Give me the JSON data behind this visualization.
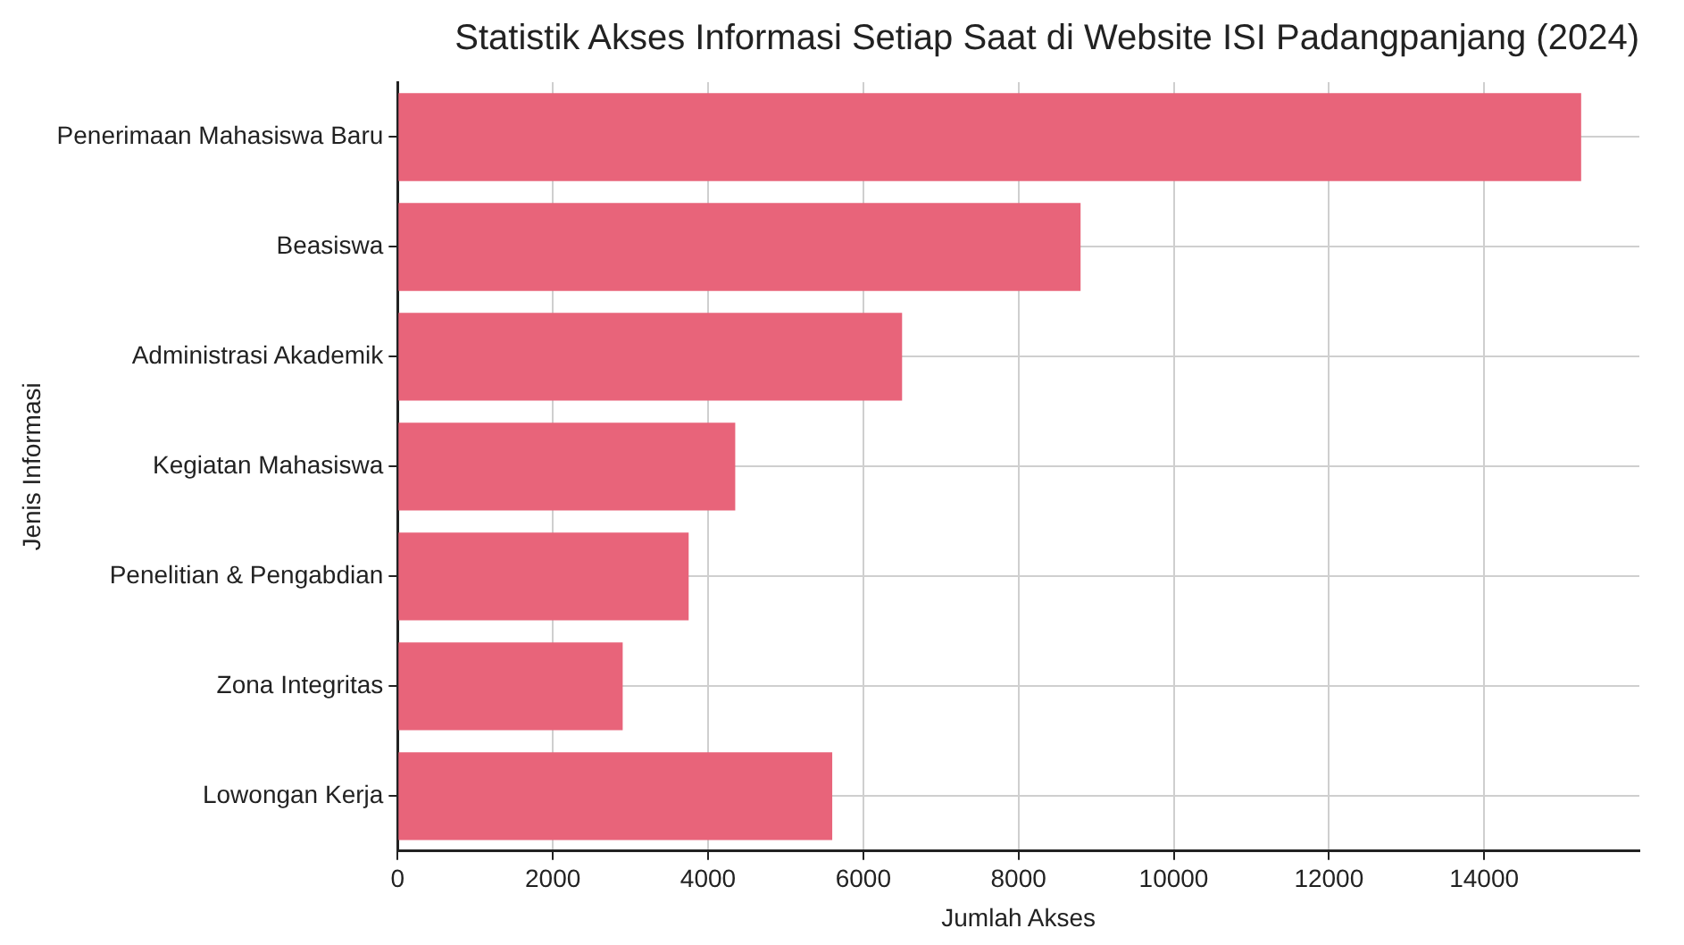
{
  "chart_data": {
    "type": "bar",
    "orientation": "horizontal",
    "title": "Statistik Akses Informasi Setiap Saat di Website ISI Padangpanjang (2024)",
    "xlabel": "Jumlah Akses",
    "ylabel": "Jenis Informasi",
    "categories": [
      "Penerimaan Mahasiswa Baru",
      "Beasiswa",
      "Administrasi Akademik",
      "Kegiatan Mahasiswa",
      "Penelitian & Pengabdian",
      "Zona Integritas",
      "Lowongan Kerja"
    ],
    "values": [
      15250,
      8800,
      6500,
      4350,
      3750,
      2900,
      5600
    ],
    "color": "#e8647a",
    "xlim": [
      0,
      16000
    ],
    "xticks": [
      0,
      2000,
      4000,
      6000,
      8000,
      10000,
      12000,
      14000
    ],
    "grid": true
  }
}
